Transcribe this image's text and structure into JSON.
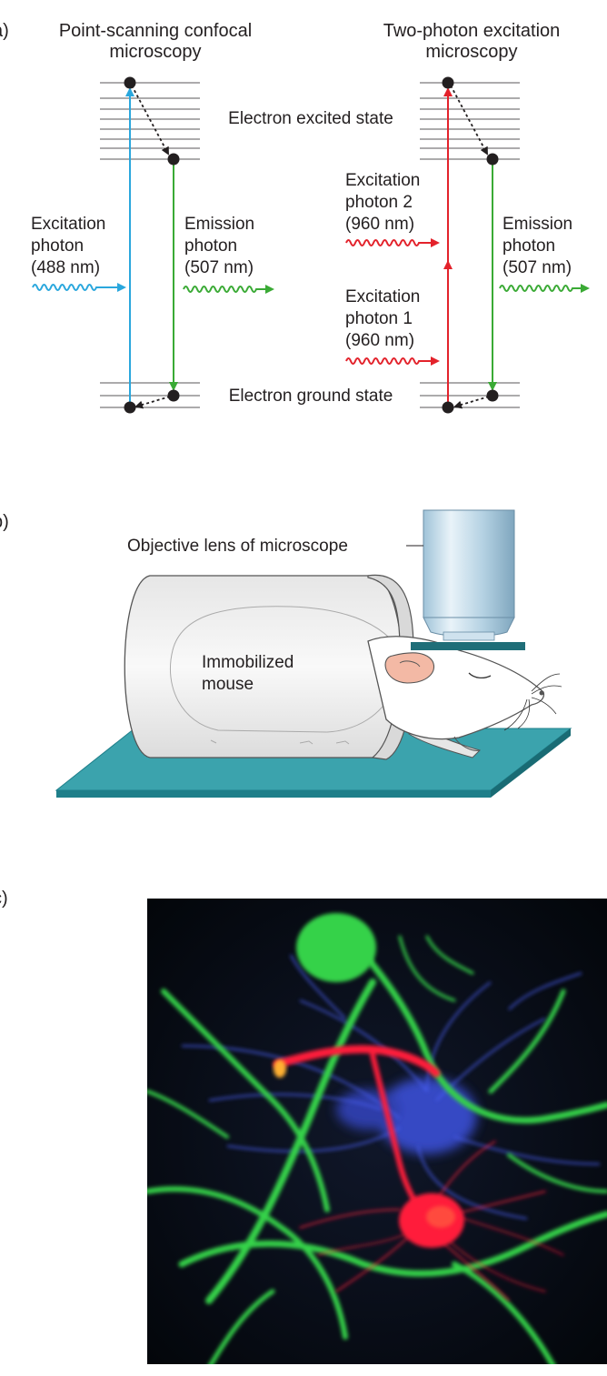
{
  "panel_a": {
    "panel_letter": "a)",
    "left_title_1": "Point-scanning confocal",
    "left_title_2": "microscopy",
    "right_title_1": "Two-photon excitation",
    "right_title_2": "microscopy",
    "excited_state_label": "Electron excited state",
    "ground_state_label": "Electron ground state",
    "left_excitation": [
      "Excitation",
      "photon",
      "(488 nm)"
    ],
    "left_emission": [
      "Emission",
      "photon",
      "(507 nm)"
    ],
    "right_excitation_2": [
      "Excitation",
      "photon 2",
      "(960 nm)"
    ],
    "right_excitation_1": [
      "Excitation",
      "photon 1",
      "(960 nm)"
    ],
    "right_emission": [
      "Emission",
      "photon",
      "(507 nm)"
    ],
    "colors": {
      "blue": "#2aa7dd",
      "green": "#3aaa35",
      "red": "#e3222b"
    }
  },
  "panel_b": {
    "panel_letter": "b)",
    "objective_label": "Objective lens of microscope",
    "mouse_label_1": "Immobilized",
    "mouse_label_2": "mouse",
    "colors": {
      "platform": "#3ba3ad",
      "platform_edge": "#1f7f8a"
    }
  },
  "panel_c": {
    "panel_letter": "c)",
    "colors": {
      "background": "#05090e",
      "green_neurons": "#35d24a",
      "blue_neurons": "#3a4fd6",
      "red_neuron": "#ff1f3a"
    }
  }
}
